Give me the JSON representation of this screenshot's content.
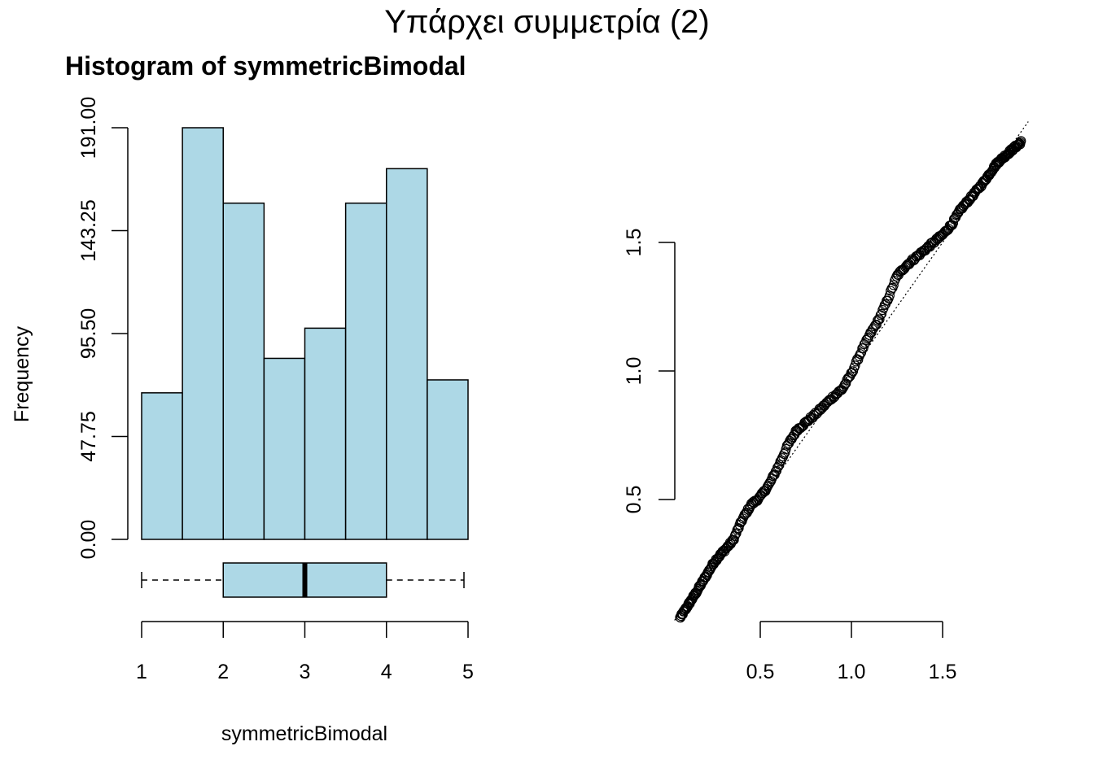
{
  "figure": {
    "title": "Υπάρχει συμμετρία (2)"
  },
  "chart_data": [
    {
      "type": "bar",
      "title": "Histogram of symmetricBimodal",
      "xlabel": "symmetricBimodal",
      "ylabel": "Frequency",
      "bins": [
        [
          1.0,
          1.5
        ],
        [
          1.5,
          2.0
        ],
        [
          2.0,
          2.5
        ],
        [
          2.5,
          3.0
        ],
        [
          3.0,
          3.5
        ],
        [
          3.5,
          4.0
        ],
        [
          4.0,
          4.5
        ],
        [
          4.5,
          5.0
        ]
      ],
      "values": [
        68,
        191,
        156,
        84,
        98,
        156,
        172,
        74
      ],
      "y_ticks": [
        "0.00",
        "47.75",
        "95.50",
        "143.25",
        "191.00"
      ],
      "ylim": [
        0,
        191
      ],
      "x_ticks": [
        "1",
        "2",
        "3",
        "4",
        "5"
      ],
      "xlim": [
        1,
        5
      ],
      "bar_color": "#add8e6",
      "boxplot": {
        "whisker_low": 1.0,
        "q1": 2.0,
        "median": 3.0,
        "q3": 4.0,
        "whisker_high": 4.95,
        "fill": "#add8e6"
      }
    },
    {
      "type": "scatter",
      "title": "",
      "xlabel": "",
      "ylabel": "",
      "x_ticks": [
        "0.5",
        "1.0",
        "1.5"
      ],
      "y_ticks": [
        "0.5",
        "1.0",
        "1.5"
      ],
      "xlim": [
        0.03,
        1.97
      ],
      "ylim": [
        0.03,
        1.97
      ],
      "marker": "open-circle",
      "reference_line": {
        "style": "dotted",
        "from": [
          0.03,
          0.03
        ],
        "to": [
          1.97,
          1.97
        ]
      },
      "curve_knots": [
        [
          0.06,
          0.04
        ],
        [
          0.15,
          0.14
        ],
        [
          0.25,
          0.26
        ],
        [
          0.35,
          0.34
        ],
        [
          0.4,
          0.42
        ],
        [
          0.45,
          0.48
        ],
        [
          0.5,
          0.51
        ],
        [
          0.55,
          0.56
        ],
        [
          0.6,
          0.63
        ],
        [
          0.65,
          0.71
        ],
        [
          0.7,
          0.77
        ],
        [
          0.8,
          0.83
        ],
        [
          0.9,
          0.9
        ],
        [
          0.95,
          0.93
        ],
        [
          1.0,
          0.99
        ],
        [
          1.05,
          1.07
        ],
        [
          1.1,
          1.14
        ],
        [
          1.15,
          1.2
        ],
        [
          1.2,
          1.28
        ],
        [
          1.25,
          1.37
        ],
        [
          1.3,
          1.41
        ],
        [
          1.4,
          1.47
        ],
        [
          1.5,
          1.53
        ],
        [
          1.55,
          1.57
        ],
        [
          1.6,
          1.63
        ],
        [
          1.65,
          1.67
        ],
        [
          1.72,
          1.73
        ],
        [
          1.8,
          1.81
        ],
        [
          1.88,
          1.86
        ],
        [
          1.93,
          1.89
        ]
      ],
      "n_points": 1000
    }
  ]
}
